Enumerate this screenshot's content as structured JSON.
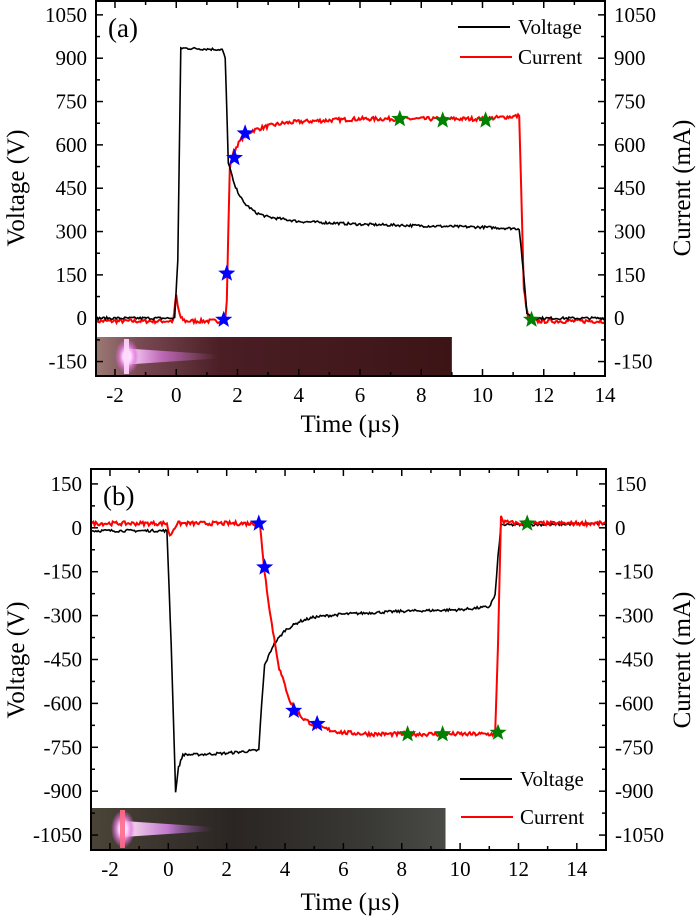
{
  "chart_data": [
    {
      "type": "line",
      "panel_label": "(a)",
      "xlabel": "Time (µs)",
      "ylabel_left": "Voltage (V)",
      "ylabel_right": "Current (mA)",
      "xlim": [
        -2.62,
        14
      ],
      "ylim": [
        -200,
        1098
      ],
      "xticks": [
        -2,
        0,
        2,
        4,
        6,
        8,
        10,
        12,
        14
      ],
      "yticks_left": [
        1050,
        900,
        750,
        600,
        450,
        300,
        150,
        0,
        -150
      ],
      "yticks_right": [
        1050,
        900,
        750,
        600,
        450,
        300,
        150,
        0,
        -150
      ],
      "legend": {
        "placement": "top-right",
        "entries": [
          "Voltage",
          "Current"
        ]
      },
      "series": [
        {
          "name": "Voltage",
          "color": "#000000",
          "x": [
            -2.62,
            -0.05,
            0.05,
            0.15,
            1.5,
            1.6,
            1.7,
            1.9,
            2.2,
            2.6,
            3.0,
            4.0,
            5.0,
            6.0,
            8.0,
            10.0,
            11.2,
            11.3,
            11.45,
            11.6,
            12.0,
            14.0
          ],
          "y": [
            0,
            0,
            200,
            935,
            930,
            900,
            540,
            460,
            400,
            365,
            350,
            335,
            330,
            325,
            320,
            315,
            310,
            200,
            20,
            0,
            0,
            0
          ]
        },
        {
          "name": "Current",
          "color": "#ff0000",
          "x": [
            -2.62,
            -0.1,
            0.0,
            0.05,
            0.15,
            0.3,
            1.6,
            1.65,
            1.7,
            1.75,
            1.85,
            2.0,
            2.2,
            2.5,
            3.0,
            3.5,
            4.0,
            5.0,
            6.0,
            8.0,
            10.0,
            11.2,
            11.25,
            11.35,
            11.5,
            12.0,
            14.0
          ],
          "y": [
            -10,
            -10,
            80,
            40,
            0,
            -10,
            -10,
            60,
            300,
            520,
            570,
            600,
            630,
            650,
            665,
            675,
            680,
            685,
            690,
            690,
            690,
            700,
            500,
            100,
            -10,
            -10,
            -10
          ]
        }
      ],
      "markers": [
        {
          "color": "#0000ff",
          "points": [
            [
              1.55,
              -5
            ],
            [
              1.65,
              155
            ],
            [
              1.9,
              555
            ],
            [
              2.25,
              640
            ]
          ]
        },
        {
          "color": "#008000",
          "points": [
            [
              7.3,
              690
            ],
            [
              8.7,
              685
            ],
            [
              10.1,
              685
            ],
            [
              11.6,
              -5
            ]
          ]
        }
      ],
      "inset_image": {
        "time_range": [
          -2.62,
          9.0
        ]
      }
    },
    {
      "type": "line",
      "panel_label": "(b)",
      "xlabel": "Time (µs)",
      "ylabel_left": "Voltage (V)",
      "ylabel_right": "Current (mA)",
      "xlim": [
        -2.65,
        15
      ],
      "ylim": [
        -1101,
        201
      ],
      "xticks": [
        -2,
        0,
        2,
        4,
        6,
        8,
        10,
        12,
        14
      ],
      "yticks_left": [
        150,
        0,
        -150,
        -300,
        -450,
        -600,
        -750,
        -900,
        -1050
      ],
      "yticks_right": [
        150,
        0,
        -150,
        -300,
        -450,
        -600,
        -750,
        -900,
        -1050
      ],
      "legend": {
        "placement": "bottom-right",
        "entries": [
          "Voltage",
          "Current"
        ]
      },
      "series": [
        {
          "name": "Voltage",
          "color": "#000000",
          "x": [
            -2.65,
            -0.05,
            0.1,
            0.25,
            0.35,
            0.5,
            1.0,
            2.0,
            3.1,
            3.2,
            3.3,
            3.6,
            4.0,
            4.5,
            5.0,
            6.0,
            8.0,
            10.0,
            11.0,
            11.2,
            11.3,
            11.4,
            12.0,
            15.0
          ],
          "y": [
            -10,
            -10,
            -400,
            -900,
            -820,
            -775,
            -775,
            -770,
            -760,
            -600,
            -470,
            -400,
            -350,
            -320,
            -305,
            -295,
            -285,
            -280,
            -270,
            -230,
            -100,
            10,
            10,
            15
          ]
        },
        {
          "name": "Current",
          "color": "#ff0000",
          "x": [
            -2.65,
            -0.05,
            0.05,
            0.15,
            0.3,
            3.0,
            3.15,
            3.3,
            3.5,
            3.8,
            4.2,
            4.6,
            5.0,
            5.5,
            6.0,
            7.0,
            8.0,
            10.0,
            11.2,
            11.3,
            11.4,
            11.5,
            12.0,
            15.0
          ],
          "y": [
            15,
            15,
            -30,
            -10,
            15,
            15,
            0,
            -150,
            -300,
            -480,
            -600,
            -650,
            -675,
            -690,
            -700,
            -705,
            -705,
            -705,
            -705,
            -400,
            40,
            20,
            15,
            15
          ]
        }
      ],
      "markers": [
        {
          "color": "#0000ff",
          "points": [
            [
              3.1,
              15
            ],
            [
              3.3,
              -135
            ],
            [
              4.3,
              -625
            ],
            [
              5.1,
              -670
            ]
          ]
        },
        {
          "color": "#008000",
          "points": [
            [
              8.2,
              -705
            ],
            [
              9.4,
              -705
            ],
            [
              11.3,
              -700
            ],
            [
              12.3,
              15
            ]
          ]
        }
      ],
      "inset_image": {
        "time_range": [
          -2.65,
          9.5
        ]
      }
    }
  ]
}
